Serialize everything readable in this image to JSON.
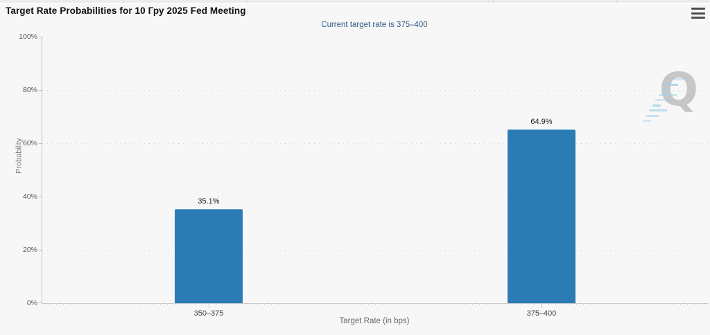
{
  "header": {
    "title": "Target Rate Probabilities for 10 Гру 2025 Fed Meeting",
    "menu_icon": "hamburger-icon"
  },
  "colors": {
    "bar": "#2b7cb4",
    "subtitle": "#2f5a87",
    "background": "#f7f7f7",
    "watermark_gray": "#c6c6c6",
    "watermark_blue": "#a2d0e6"
  },
  "watermark_letter": "Q",
  "chart_data": {
    "type": "bar",
    "title": "Target Rate Probabilities for 10 Гру 2025 Fed Meeting",
    "subtitle": "Current target rate is 375–400",
    "categories": [
      "350–375",
      "375–400"
    ],
    "values": [
      35.1,
      64.9
    ],
    "value_labels": [
      "35.1%",
      "64.9%"
    ],
    "xlabel": "Target Rate (in bps)",
    "ylabel": "Probability",
    "ylim": [
      0,
      100
    ],
    "yticks": [
      0,
      20,
      40,
      60,
      80,
      100
    ],
    "ytick_labels": [
      "0%",
      "20%",
      "40%",
      "60%",
      "80%",
      "100%"
    ],
    "grid": "horizontal-dotted",
    "legend": "none"
  }
}
